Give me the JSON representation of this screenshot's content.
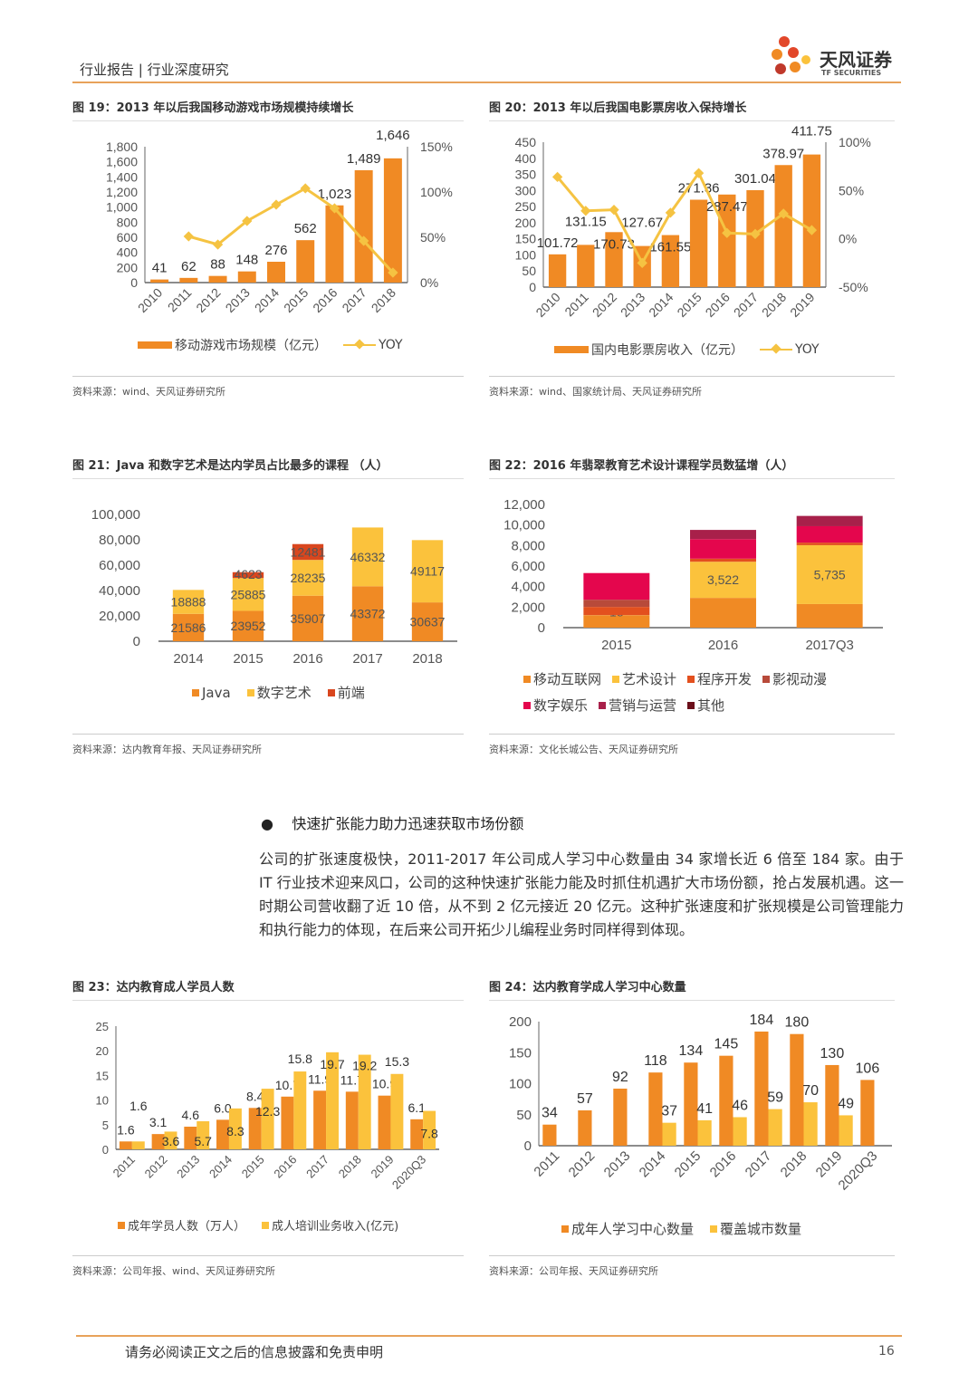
{
  "header": {
    "left": "行业报告 | 行业深度研究",
    "logo_cn": "天风证券",
    "logo_en": "TF SECURITIES"
  },
  "figures": [
    {
      "title": "图 19：2013 年以后我国移动游戏市场规模持续增长",
      "source": "资料来源：wind、天风证券研究所"
    },
    {
      "title": "图 20：2013 年以后我国电影票房收入保持增长",
      "source": "资料来源：wind、国家统计局、天风证券研究所"
    },
    {
      "title": "图 21：Java 和数字艺术是达内学员占比最多的课程 （人）",
      "source": "资料来源：达内教育年报、天风证券研究所"
    },
    {
      "title": "图 22：2016 年翡翠教育艺术设计课程学员数猛增（人）",
      "source": "资料来源：文化长城公告、天风证券研究所"
    },
    {
      "title": "图 23：达内教育成人学员人数",
      "source": "资料来源：公司年报、wind、天风证券研究所"
    },
    {
      "title": "图 24：达内教育学成人学习中心数量",
      "source": "资料来源：公司年报、天风证券研究所"
    }
  ],
  "section": {
    "bullet": "●",
    "heading": "快速扩张能力助力迅速获取市场份额",
    "paragraph": "公司的扩张速度极快，2011-2017 年公司成人学习中心数量由 34 家增长近 6 倍至 184 家。由于 IT 行业技术迎来风口，公司的这种快速扩张能力能及时抓住机遇扩大市场份额，抢占发展机遇。这一时期公司营收翻了近 10 倍，从不到 2 亿元接近 20 亿元。这种扩张速度和扩张规模是公司管理能力和执行能力的体现，在后来公司开拓少儿编程业务时同样得到体现。"
  },
  "footer": {
    "disclaimer": "请务必阅读正文之后的信息披露和免责申明",
    "page": "16"
  },
  "chart_data": [
    {
      "type": "bar+line",
      "categories": [
        "2010",
        "2011",
        "2012",
        "2013",
        "2014",
        "2015",
        "2016",
        "2017",
        "2018"
      ],
      "yticks": [
        "0",
        "200",
        "400",
        "600",
        "800",
        "1,000",
        "1,200",
        "1,400",
        "1,600",
        "1,800"
      ],
      "ylim": [
        0,
        1800
      ],
      "y2ticks": [
        "0%",
        "50%",
        "100%",
        "150%"
      ],
      "y2lim": [
        0,
        150
      ],
      "grid": false,
      "legend": "bottom",
      "series": [
        {
          "name": "移动游戏市场规模（亿元）",
          "kind": "bar",
          "color": "#F08A24",
          "values": [
            41,
            62,
            88,
            148,
            276,
            562,
            1023,
            1489,
            1646
          ],
          "data_labels": [
            "41",
            "62",
            "88",
            "148",
            "276",
            "562",
            "1,023",
            "1,489",
            "1,646"
          ]
        },
        {
          "name": "YOY",
          "kind": "line",
          "axis": "right",
          "color": "#F5C342",
          "values": [
            null,
            51,
            42,
            68,
            86,
            104,
            82,
            46,
            11
          ]
        }
      ]
    },
    {
      "type": "bar+line",
      "categories": [
        "2010",
        "2011",
        "2012",
        "2013",
        "2014",
        "2015",
        "2016",
        "2017",
        "2018",
        "2019"
      ],
      "yticks": [
        "0",
        "50",
        "100",
        "150",
        "200",
        "250",
        "300",
        "350",
        "400",
        "450"
      ],
      "ylim": [
        0,
        450
      ],
      "y2ticks": [
        "-50%",
        "0%",
        "50%",
        "100%"
      ],
      "y2lim": [
        -50,
        100
      ],
      "grid": false,
      "legend": "bottom",
      "series": [
        {
          "name": "国内电影票房收入（亿元）",
          "kind": "bar",
          "color": "#F08A24",
          "values": [
            101.72,
            131.15,
            170.73,
            127.67,
            161.55,
            271.36,
            287.47,
            301.04,
            378.97,
            411.75
          ],
          "data_labels": [
            "101.72",
            "131.15",
            "170.73",
            "127.67",
            "161.55",
            "271.36",
            "287.47",
            "301.04",
            "378.97",
            "411.75"
          ]
        },
        {
          "name": "YOY",
          "kind": "line",
          "axis": "right",
          "color": "#F5C342",
          "values": [
            64,
            29,
            30,
            -25,
            27,
            68,
            6,
            5,
            26,
            9
          ]
        }
      ]
    },
    {
      "type": "stacked-bar",
      "categories": [
        "2014",
        "2015",
        "2016",
        "2017",
        "2018"
      ],
      "yticks": [
        "0",
        "20,000",
        "40,000",
        "60,000",
        "80,000",
        "100,000"
      ],
      "ylim": [
        0,
        100000
      ],
      "grid": false,
      "legend": "bottom",
      "series": [
        {
          "name": "Java",
          "kind": "bar",
          "color": "#F08A24",
          "values": [
            21586,
            23952,
            35907,
            43372,
            30637
          ],
          "data_labels": [
            "21586",
            "23952",
            "35907",
            "43372",
            "30637"
          ]
        },
        {
          "name": "数字艺术",
          "kind": "bar",
          "color": "#FBC23C",
          "values": [
            18888,
            25885,
            28235,
            46332,
            49117
          ],
          "data_labels": [
            "18888",
            "25885",
            "28235",
            "46332",
            "49117"
          ]
        },
        {
          "name": "前端",
          "kind": "bar",
          "color": "#D9461E",
          "values": [
            0,
            4623,
            12481,
            0,
            0
          ],
          "data_labels": [
            null,
            "4623",
            "12481",
            null,
            null
          ]
        }
      ]
    },
    {
      "type": "stacked-bar",
      "categories": [
        "2015",
        "2016",
        "2017Q3"
      ],
      "yticks": [
        "0",
        "2,000",
        "4,000",
        "6,000",
        "8,000",
        "10,000",
        "12,000"
      ],
      "ylim": [
        0,
        12000
      ],
      "grid": false,
      "legend": "bottom",
      "series": [
        {
          "name": "移动互联网",
          "kind": "bar",
          "color": "#F08A24",
          "values": [
            1200,
            2900,
            2300
          ]
        },
        {
          "name": "艺术设计",
          "kind": "bar",
          "color": "#FBC23C",
          "values": [
            18,
            3522,
            5735
          ],
          "data_labels": [
            "18",
            "3,522",
            "5,735"
          ]
        },
        {
          "name": "程序开发",
          "kind": "bar",
          "color": "#E3501E",
          "values": [
            800,
            300,
            250
          ]
        },
        {
          "name": "影视动漫",
          "kind": "bar",
          "color": "#B84A3A",
          "values": [
            700,
            0,
            0
          ]
        },
        {
          "name": "数字娱乐",
          "kind": "bar",
          "color": "#E4064D",
          "values": [
            2600,
            1900,
            1600
          ]
        },
        {
          "name": "营销与运营",
          "kind": "bar",
          "color": "#A8204A",
          "values": [
            0,
            900,
            1000
          ]
        },
        {
          "name": "其他",
          "kind": "bar",
          "color": "#6B0F1A",
          "values": [
            0,
            0,
            0
          ]
        }
      ]
    },
    {
      "type": "grouped-bar",
      "categories": [
        "2011",
        "2012",
        "2013",
        "2014",
        "2015",
        "2016",
        "2017",
        "2018",
        "2019",
        "2020Q3"
      ],
      "yticks": [
        "0",
        "5",
        "10",
        "15",
        "20",
        "25"
      ],
      "ylim": [
        0,
        25
      ],
      "grid": false,
      "legend": "bottom",
      "series": [
        {
          "name": "成年学员人数（万人）",
          "kind": "bar",
          "color": "#F08A24",
          "values": [
            1.6,
            3.1,
            4.6,
            6.0,
            8.4,
            10.7,
            11.9,
            11.7,
            10.9,
            6.1
          ],
          "data_labels": [
            "1.6",
            "3.1",
            "4.6",
            "6.0",
            "8.4",
            "10.7",
            "11.9",
            "11.7",
            "10.9",
            "6.1"
          ]
        },
        {
          "name": "成人培训业务收入(亿元)",
          "kind": "bar",
          "color": "#FBC23C",
          "values": [
            1.6,
            3.6,
            5.7,
            8.3,
            12.3,
            15.8,
            19.7,
            19.2,
            15.3,
            7.8
          ],
          "data_labels": [
            "1.6",
            "3.6",
            "5.7",
            "8.3",
            "12.3",
            "15.8",
            "19.7",
            "19.2",
            "15.3",
            "7.8"
          ]
        }
      ]
    },
    {
      "type": "grouped-bar",
      "categories": [
        "2011",
        "2012",
        "2013",
        "2014",
        "2015",
        "2016",
        "2017",
        "2018",
        "2019",
        "2020Q3"
      ],
      "yticks": [
        "0",
        "50",
        "100",
        "150",
        "200"
      ],
      "ylim": [
        0,
        200
      ],
      "grid": false,
      "legend": "bottom",
      "series": [
        {
          "name": "成年人学习中心数量",
          "kind": "bar",
          "color": "#F08A24",
          "values": [
            34,
            57,
            92,
            118,
            134,
            145,
            184,
            180,
            130,
            106
          ],
          "data_labels": [
            "34",
            "57",
            "92",
            "118",
            "134",
            "145",
            "184",
            "180",
            "130",
            "106"
          ]
        },
        {
          "name": "覆盖城市数量",
          "kind": "bar",
          "color": "#FBC23C",
          "values": [
            null,
            null,
            null,
            37,
            41,
            46,
            59,
            70,
            49,
            null
          ],
          "data_labels": [
            null,
            null,
            null,
            "37",
            "41",
            "46",
            "59",
            "70",
            "49",
            null
          ]
        }
      ]
    }
  ]
}
